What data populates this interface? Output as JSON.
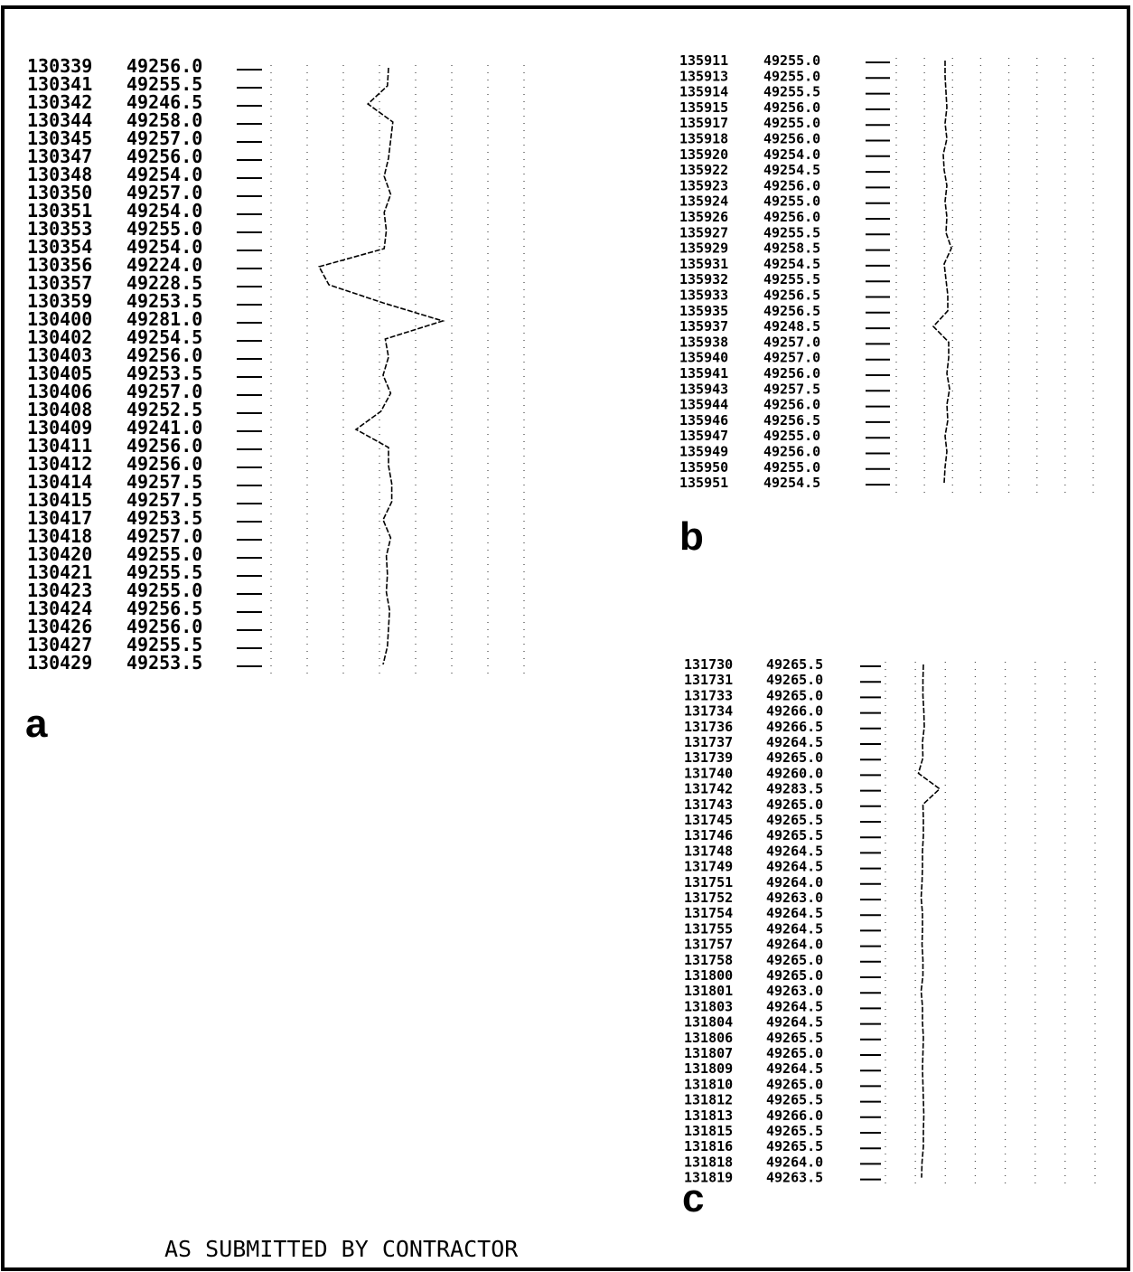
{
  "panels": [
    {
      "label": "a",
      "rows": [
        {
          "time": "130339",
          "value": "49256.0"
        },
        {
          "time": "130341",
          "value": "49255.5"
        },
        {
          "time": "130342",
          "value": "49246.5"
        },
        {
          "time": "130344",
          "value": "49258.0"
        },
        {
          "time": "130345",
          "value": "49257.0"
        },
        {
          "time": "130347",
          "value": "49256.0"
        },
        {
          "time": "130348",
          "value": "49254.0"
        },
        {
          "time": "130350",
          "value": "49257.0"
        },
        {
          "time": "130351",
          "value": "49254.0"
        },
        {
          "time": "130353",
          "value": "49255.0"
        },
        {
          "time": "130354",
          "value": "49254.0"
        },
        {
          "time": "130356",
          "value": "49224.0"
        },
        {
          "time": "130357",
          "value": "49228.5"
        },
        {
          "time": "130359",
          "value": "49253.5"
        },
        {
          "time": "130400",
          "value": "49281.0"
        },
        {
          "time": "130402",
          "value": "49254.5"
        },
        {
          "time": "130403",
          "value": "49256.0"
        },
        {
          "time": "130405",
          "value": "49253.5"
        },
        {
          "time": "130406",
          "value": "49257.0"
        },
        {
          "time": "130408",
          "value": "49252.5"
        },
        {
          "time": "130409",
          "value": "49241.0"
        },
        {
          "time": "130411",
          "value": "49256.0"
        },
        {
          "time": "130412",
          "value": "49256.0"
        },
        {
          "time": "130414",
          "value": "49257.5"
        },
        {
          "time": "130415",
          "value": "49257.5"
        },
        {
          "time": "130417",
          "value": "49253.5"
        },
        {
          "time": "130418",
          "value": "49257.0"
        },
        {
          "time": "130420",
          "value": "49255.0"
        },
        {
          "time": "130421",
          "value": "49255.5"
        },
        {
          "time": "130423",
          "value": "49255.0"
        },
        {
          "time": "130424",
          "value": "49256.5"
        },
        {
          "time": "130426",
          "value": "49256.0"
        },
        {
          "time": "130427",
          "value": "49255.5"
        },
        {
          "time": "130429",
          "value": "49253.5"
        }
      ]
    },
    {
      "label": "b",
      "rows": [
        {
          "time": "135911",
          "value": "49255.0"
        },
        {
          "time": "135913",
          "value": "49255.0"
        },
        {
          "time": "135914",
          "value": "49255.5"
        },
        {
          "time": "135915",
          "value": "49256.0"
        },
        {
          "time": "135917",
          "value": "49255.0"
        },
        {
          "time": "135918",
          "value": "49256.0"
        },
        {
          "time": "135920",
          "value": "49254.0"
        },
        {
          "time": "135922",
          "value": "49254.5"
        },
        {
          "time": "135923",
          "value": "49256.0"
        },
        {
          "time": "135924",
          "value": "49255.0"
        },
        {
          "time": "135926",
          "value": "49256.0"
        },
        {
          "time": "135927",
          "value": "49255.5"
        },
        {
          "time": "135929",
          "value": "49258.5"
        },
        {
          "time": "135931",
          "value": "49254.5"
        },
        {
          "time": "135932",
          "value": "49255.5"
        },
        {
          "time": "135933",
          "value": "49256.5"
        },
        {
          "time": "135935",
          "value": "49256.5"
        },
        {
          "time": "135937",
          "value": "49248.5"
        },
        {
          "time": "135938",
          "value": "49257.0"
        },
        {
          "time": "135940",
          "value": "49257.0"
        },
        {
          "time": "135941",
          "value": "49256.0"
        },
        {
          "time": "135943",
          "value": "49257.5"
        },
        {
          "time": "135944",
          "value": "49256.0"
        },
        {
          "time": "135946",
          "value": "49256.5"
        },
        {
          "time": "135947",
          "value": "49255.0"
        },
        {
          "time": "135949",
          "value": "49256.0"
        },
        {
          "time": "135950",
          "value": "49255.0"
        },
        {
          "time": "135951",
          "value": "49254.5"
        }
      ]
    },
    {
      "label": "c",
      "rows": [
        {
          "time": "131730",
          "value": "49265.5"
        },
        {
          "time": "131731",
          "value": "49265.0"
        },
        {
          "time": "131733",
          "value": "49265.0"
        },
        {
          "time": "131734",
          "value": "49266.0"
        },
        {
          "time": "131736",
          "value": "49266.5"
        },
        {
          "time": "131737",
          "value": "49264.5"
        },
        {
          "time": "131739",
          "value": "49265.0"
        },
        {
          "time": "131740",
          "value": "49260.0"
        },
        {
          "time": "131742",
          "value": "49283.5"
        },
        {
          "time": "131743",
          "value": "49265.0"
        },
        {
          "time": "131745",
          "value": "49265.5"
        },
        {
          "time": "131746",
          "value": "49265.5"
        },
        {
          "time": "131748",
          "value": "49264.5"
        },
        {
          "time": "131749",
          "value": "49264.5"
        },
        {
          "time": "131751",
          "value": "49264.0"
        },
        {
          "time": "131752",
          "value": "49263.0"
        },
        {
          "time": "131754",
          "value": "49264.5"
        },
        {
          "time": "131755",
          "value": "49264.5"
        },
        {
          "time": "131757",
          "value": "49264.0"
        },
        {
          "time": "131758",
          "value": "49265.0"
        },
        {
          "time": "131800",
          "value": "49265.0"
        },
        {
          "time": "131801",
          "value": "49263.0"
        },
        {
          "time": "131803",
          "value": "49264.5"
        },
        {
          "time": "131804",
          "value": "49264.5"
        },
        {
          "time": "131806",
          "value": "49265.5"
        },
        {
          "time": "131807",
          "value": "49265.0"
        },
        {
          "time": "131809",
          "value": "49264.5"
        },
        {
          "time": "131810",
          "value": "49265.0"
        },
        {
          "time": "131812",
          "value": "49265.5"
        },
        {
          "time": "131813",
          "value": "49266.0"
        },
        {
          "time": "131815",
          "value": "49265.5"
        },
        {
          "time": "131816",
          "value": "49265.5"
        },
        {
          "time": "131818",
          "value": "49264.0"
        },
        {
          "time": "131819",
          "value": "49263.5"
        }
      ]
    }
  ],
  "footer": "AS SUBMITTED BY CONTRACTOR"
}
